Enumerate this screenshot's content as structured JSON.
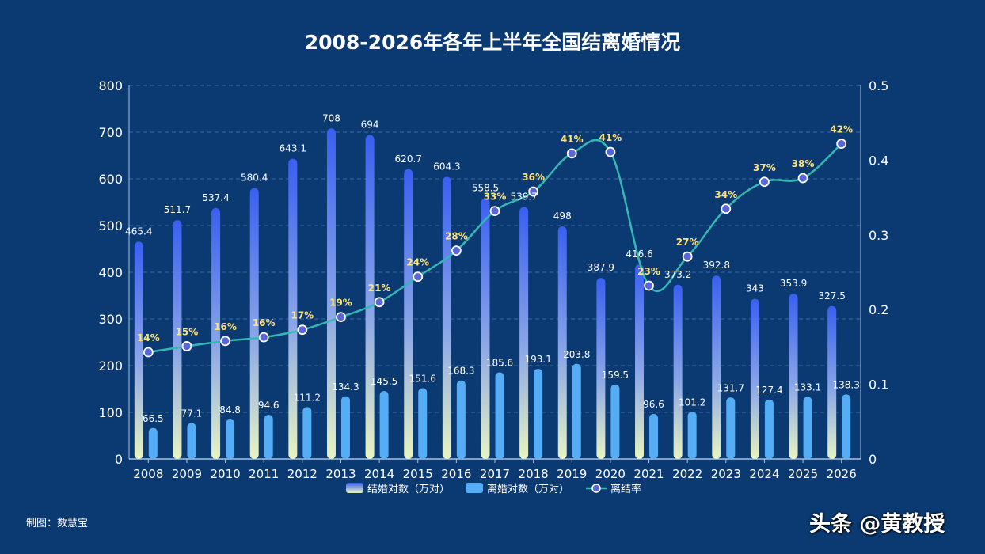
{
  "chart_data": {
    "type": "bar",
    "title": "2008-2026年各年上半年全国结离婚情况",
    "categories": [
      "2008",
      "2009",
      "2010",
      "2011",
      "2012",
      "2013",
      "2014",
      "2015",
      "2016",
      "2017",
      "2018",
      "2019",
      "2020",
      "2021",
      "2022",
      "2023",
      "2024",
      "2025",
      "2026"
    ],
    "series": [
      {
        "name": "结婚对数（万对）",
        "type": "bar",
        "axis": "left",
        "values": [
          465.4,
          511.7,
          537.4,
          580.4,
          643.1,
          708,
          694,
          620.7,
          604.3,
          558.5,
          539.7,
          498,
          387.9,
          416.6,
          373.2,
          392.8,
          343,
          353.9,
          327.5
        ]
      },
      {
        "name": "离婚对数（万对）",
        "type": "bar",
        "axis": "left",
        "values": [
          66.5,
          77.1,
          84.8,
          94.6,
          111.2,
          134.3,
          145.5,
          151.6,
          168.3,
          185.6,
          193.1,
          203.8,
          159.5,
          96.6,
          101.2,
          131.7,
          127.4,
          133.1,
          138.3
        ]
      },
      {
        "name": "离结率",
        "type": "line",
        "axis": "right",
        "values": [
          0.143,
          0.151,
          0.158,
          0.163,
          0.173,
          0.19,
          0.21,
          0.244,
          0.279,
          0.332,
          0.358,
          0.409,
          0.411,
          0.232,
          0.271,
          0.335,
          0.371,
          0.376,
          0.422
        ],
        "labels": [
          "14%",
          "15%",
          "16%",
          "16%",
          "17%",
          "19%",
          "21%",
          "24%",
          "28%",
          "33%",
          "36%",
          "41%",
          "41%",
          "23%",
          "27%",
          "34%",
          "37%",
          "38%",
          "42%"
        ]
      }
    ],
    "y_left": {
      "min": 0,
      "max": 800,
      "ticks": [
        "0",
        "100",
        "200",
        "300",
        "400",
        "500",
        "600",
        "700",
        "800"
      ]
    },
    "y_right": {
      "min": 0,
      "max": 0.5,
      "ticks": [
        "0",
        "0.1",
        "0.2",
        "0.3",
        "0.4",
        "0.5"
      ]
    },
    "grid": true,
    "legend_position": "bottom-center",
    "colors": {
      "marriage_top": "#3a5ff0",
      "marriage_mid": "#8aa6e8",
      "marriage_bottom": "#e8f4c2",
      "divorce": "#55adf5",
      "rate_line": "#33b8b4",
      "rate_label": "#ffe27a",
      "marker_fill": "#5a66d8",
      "grid": "#3d6a9e",
      "axis": "#a8c4e4"
    }
  },
  "footer": {
    "credit": "制图：数慧宝",
    "watermark": "头条 @黄教授"
  }
}
